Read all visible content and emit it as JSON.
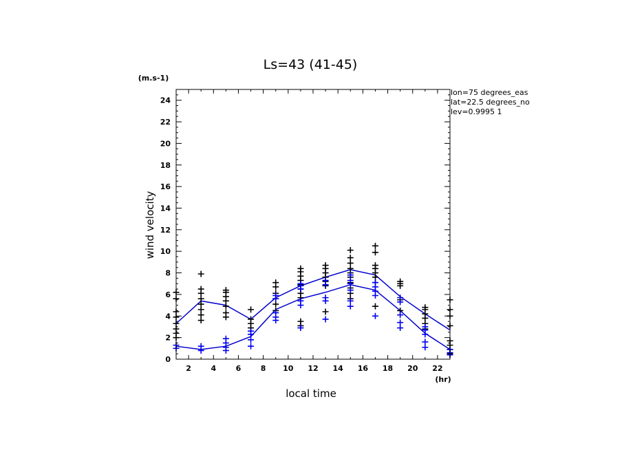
{
  "chart_data": {
    "type": "scatter",
    "title": "Ls=43 (41-45)",
    "ylabel": "wind velocity",
    "yunit": "(m.s-1)",
    "xlabel": "local time",
    "xunit": "(hr)",
    "info": [
      "lon=75 degrees_eas",
      "lat=22.5 degrees_no",
      "lev=0.9995 1"
    ],
    "xlim": [
      1,
      23
    ],
    "ylim": [
      0,
      25
    ],
    "xticks": [
      2,
      4,
      6,
      8,
      10,
      12,
      14,
      16,
      18,
      20,
      22
    ],
    "yticks": [
      2,
      4,
      6,
      8,
      10,
      12,
      14,
      16,
      18,
      20,
      22,
      24
    ],
    "grid": false,
    "colors": {
      "line": "#0000cc",
      "blue_points": "#0000ee",
      "black_points": "#000000"
    },
    "series": [
      {
        "color": "black",
        "marker": "plus",
        "points": [
          [
            1,
            2.0
          ],
          [
            1,
            2.4
          ],
          [
            1,
            2.8
          ],
          [
            1,
            3.3
          ],
          [
            1,
            3.9
          ],
          [
            1,
            4.4
          ],
          [
            1,
            5.6
          ],
          [
            1,
            6.2
          ],
          [
            3,
            3.6
          ],
          [
            3,
            4.1
          ],
          [
            3,
            4.6
          ],
          [
            3,
            5.1
          ],
          [
            3,
            5.6
          ],
          [
            3,
            6.1
          ],
          [
            3,
            6.5
          ],
          [
            3,
            7.9
          ],
          [
            5,
            3.9
          ],
          [
            5,
            4.3
          ],
          [
            5,
            4.9
          ],
          [
            5,
            5.4
          ],
          [
            5,
            5.8
          ],
          [
            5,
            6.2
          ],
          [
            5,
            6.4
          ],
          [
            7,
            2.9
          ],
          [
            7,
            3.3
          ],
          [
            7,
            3.7
          ],
          [
            7,
            4.6
          ],
          [
            9,
            4.5
          ],
          [
            9,
            5.1
          ],
          [
            9,
            5.6
          ],
          [
            9,
            6.1
          ],
          [
            9,
            6.7
          ],
          [
            9,
            7.1
          ],
          [
            11,
            3.1
          ],
          [
            11,
            3.5
          ],
          [
            11,
            5.7
          ],
          [
            11,
            6.1
          ],
          [
            11,
            6.5
          ],
          [
            11,
            6.9
          ],
          [
            11,
            7.3
          ],
          [
            11,
            7.7
          ],
          [
            11,
            8.1
          ],
          [
            11,
            8.4
          ],
          [
            13,
            4.4
          ],
          [
            13,
            6.8
          ],
          [
            13,
            7.2
          ],
          [
            13,
            7.6
          ],
          [
            13,
            8.0
          ],
          [
            13,
            8.4
          ],
          [
            13,
            8.7
          ],
          [
            15,
            5.6
          ],
          [
            15,
            6.1
          ],
          [
            15,
            6.6
          ],
          [
            15,
            7.1
          ],
          [
            15,
            7.6
          ],
          [
            15,
            8.0
          ],
          [
            15,
            8.4
          ],
          [
            15,
            8.9
          ],
          [
            15,
            9.4
          ],
          [
            15,
            10.1
          ],
          [
            17,
            4.9
          ],
          [
            17,
            7.1
          ],
          [
            17,
            7.6
          ],
          [
            17,
            8.0
          ],
          [
            17,
            8.4
          ],
          [
            17,
            8.7
          ],
          [
            17,
            9.9
          ],
          [
            17,
            10.5
          ],
          [
            19,
            4.5
          ],
          [
            19,
            5.5
          ],
          [
            19,
            6.8
          ],
          [
            19,
            7.0
          ],
          [
            19,
            7.2
          ],
          [
            21,
            2.8
          ],
          [
            21,
            3.3
          ],
          [
            21,
            3.8
          ],
          [
            21,
            4.2
          ],
          [
            21,
            4.6
          ],
          [
            21,
            4.8
          ],
          [
            23,
            0.5
          ],
          [
            23,
            0.9
          ],
          [
            23,
            1.3
          ],
          [
            23,
            1.7
          ],
          [
            23,
            3.1
          ],
          [
            23,
            4.0
          ],
          [
            23,
            4.6
          ],
          [
            23,
            5.5
          ]
        ]
      },
      {
        "color": "blue",
        "marker": "plus",
        "points": [
          [
            1,
            1.0
          ],
          [
            1,
            1.3
          ],
          [
            3,
            0.8
          ],
          [
            3,
            1.2
          ],
          [
            5,
            0.8
          ],
          [
            5,
            1.1
          ],
          [
            5,
            1.5
          ],
          [
            5,
            1.9
          ],
          [
            7,
            1.2
          ],
          [
            7,
            1.8
          ],
          [
            7,
            2.3
          ],
          [
            7,
            2.6
          ],
          [
            9,
            3.6
          ],
          [
            9,
            3.9
          ],
          [
            9,
            4.3
          ],
          [
            9,
            5.6
          ],
          [
            9,
            5.9
          ],
          [
            11,
            2.9
          ],
          [
            11,
            5.0
          ],
          [
            11,
            5.4
          ],
          [
            11,
            6.5
          ],
          [
            11,
            6.8
          ],
          [
            11,
            7.0
          ],
          [
            13,
            3.7
          ],
          [
            13,
            5.4
          ],
          [
            13,
            5.7
          ],
          [
            13,
            6.9
          ],
          [
            13,
            7.3
          ],
          [
            15,
            4.9
          ],
          [
            15,
            5.4
          ],
          [
            15,
            6.4
          ],
          [
            15,
            7.0
          ],
          [
            15,
            7.3
          ],
          [
            15,
            7.8
          ],
          [
            17,
            4.0
          ],
          [
            17,
            5.9
          ],
          [
            17,
            6.3
          ],
          [
            17,
            6.7
          ],
          [
            17,
            7.1
          ],
          [
            19,
            2.9
          ],
          [
            19,
            3.4
          ],
          [
            19,
            4.1
          ],
          [
            19,
            5.3
          ],
          [
            19,
            5.7
          ],
          [
            21,
            1.1
          ],
          [
            21,
            1.6
          ],
          [
            21,
            2.3
          ],
          [
            21,
            2.7
          ],
          [
            21,
            3.0
          ],
          [
            23,
            0.4
          ],
          [
            23,
            0.6
          ],
          [
            23,
            0.9
          ]
        ]
      },
      {
        "marker": "line",
        "x": [
          1,
          3,
          5,
          7,
          9,
          11,
          13,
          15,
          17,
          19,
          21,
          23
        ],
        "y": [
          3.3,
          5.4,
          5.0,
          3.7,
          5.7,
          6.8,
          7.6,
          8.3,
          7.8,
          5.8,
          4.2,
          2.7
        ]
      },
      {
        "marker": "line",
        "x": [
          1,
          3,
          5,
          7,
          9,
          11,
          13,
          15,
          17,
          19,
          21,
          23
        ],
        "y": [
          1.2,
          0.9,
          1.2,
          2.1,
          4.6,
          5.6,
          6.2,
          6.9,
          6.4,
          4.5,
          2.4,
          0.9
        ]
      }
    ]
  }
}
